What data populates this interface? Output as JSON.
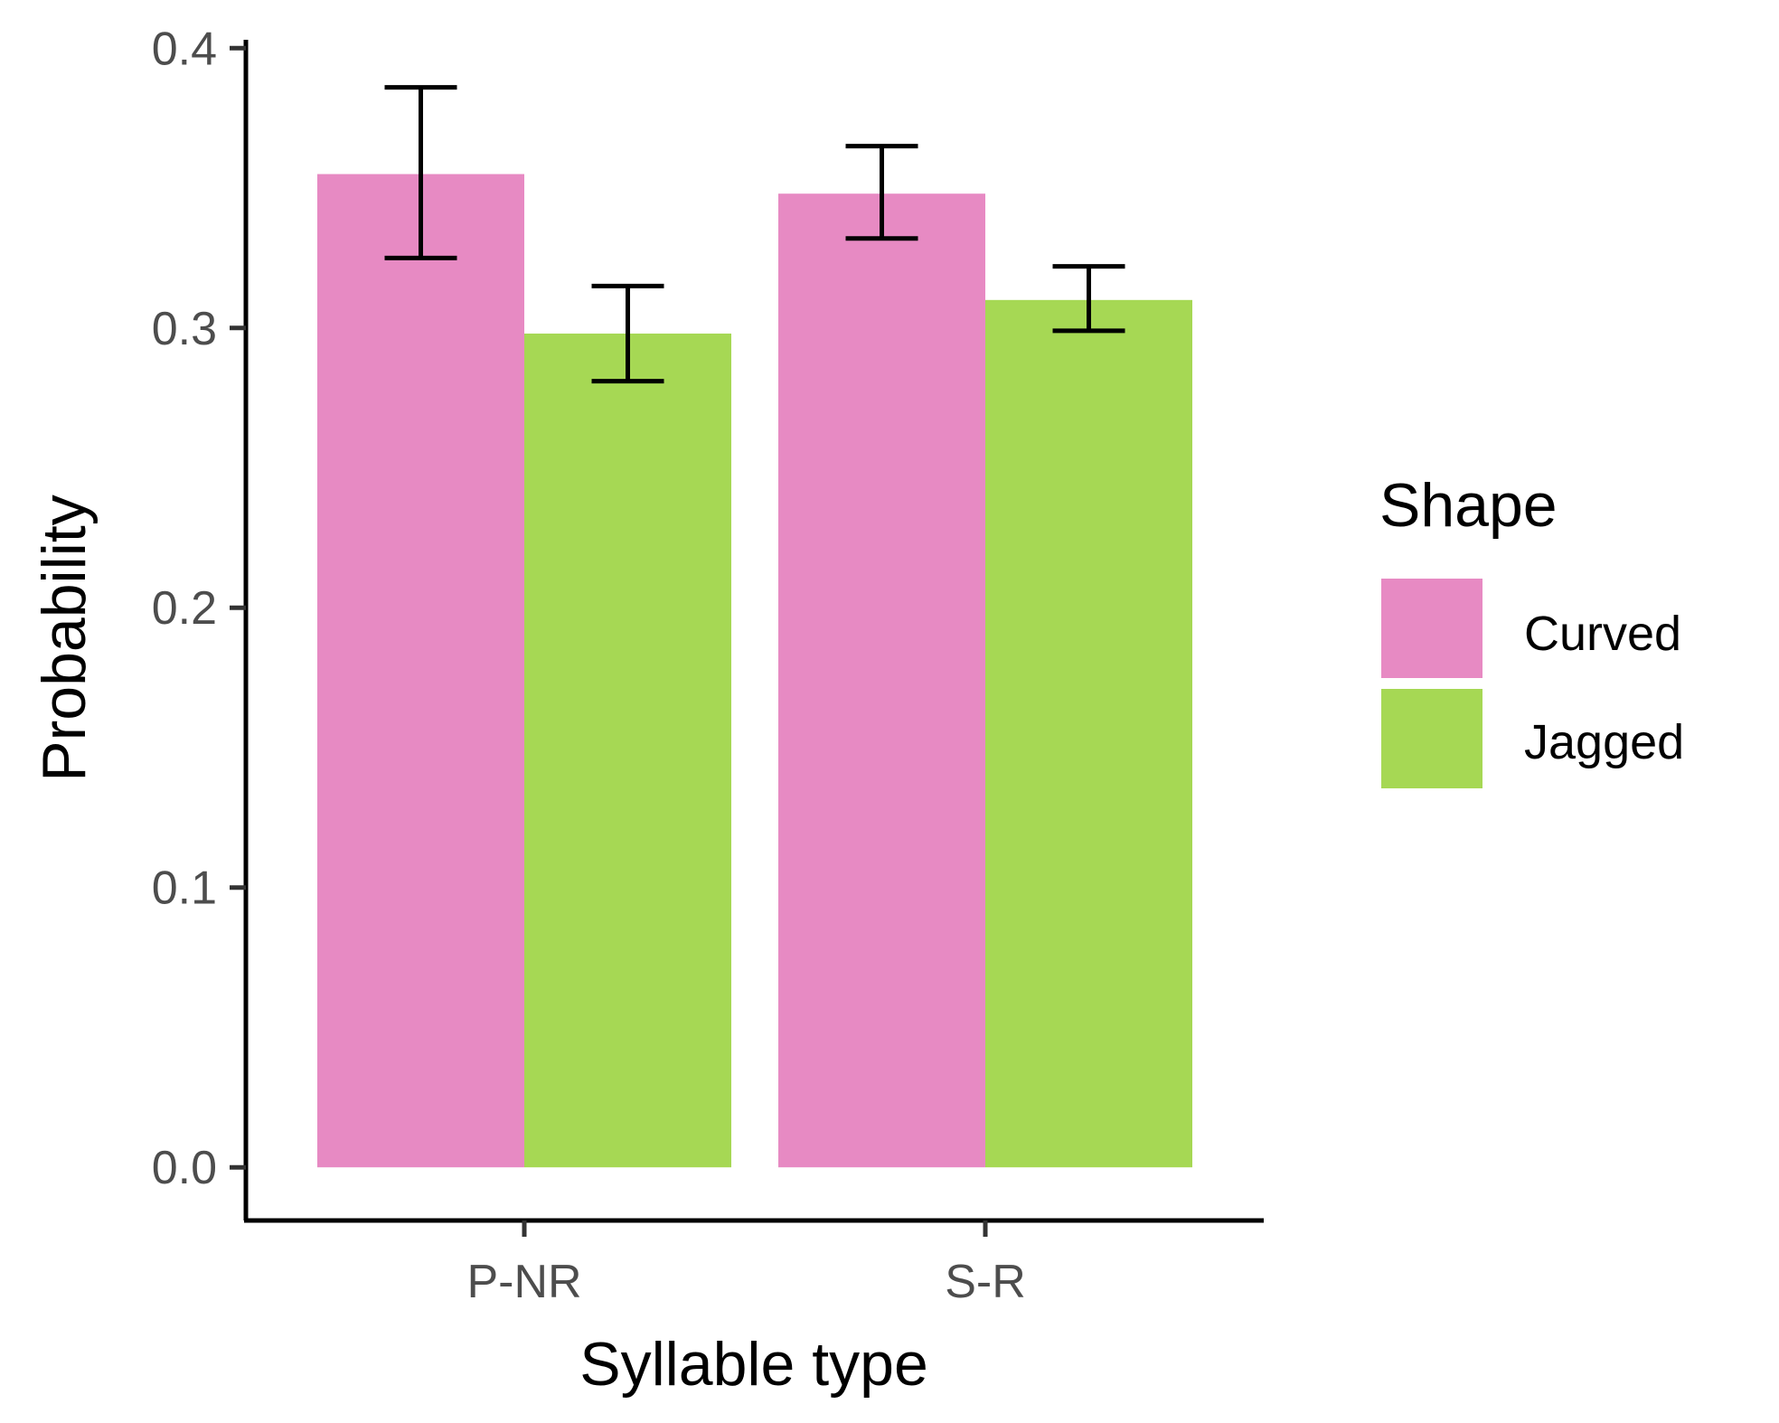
{
  "chart_data": {
    "type": "bar",
    "title": "",
    "xlabel": "Syllable type",
    "ylabel": "Probability",
    "categories": [
      "P-NR",
      "S-R"
    ],
    "series": [
      {
        "name": "Curved",
        "color": "#e78ac3",
        "values": [
          0.355,
          0.348
        ],
        "error_low": [
          0.325,
          0.332
        ],
        "error_high": [
          0.386,
          0.365
        ]
      },
      {
        "name": "Jagged",
        "color": "#a6d854",
        "values": [
          0.298,
          0.31
        ],
        "error_low": [
          0.281,
          0.299
        ],
        "error_high": [
          0.315,
          0.322
        ]
      }
    ],
    "ylim": [
      -0.019,
      0.403
    ],
    "yticks": [
      0.0,
      0.1,
      0.2,
      0.3,
      0.4
    ],
    "ytick_labels": [
      "0.0",
      "0.1",
      "0.2",
      "0.3",
      "0.4"
    ],
    "grid": false,
    "legend": {
      "title": "Shape",
      "position": "right",
      "entries": [
        "Curved",
        "Jagged"
      ]
    }
  }
}
